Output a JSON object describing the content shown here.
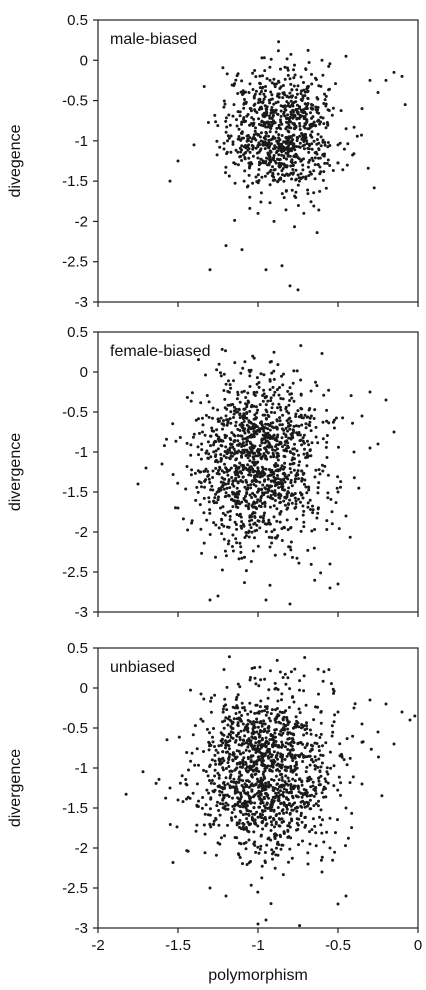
{
  "chart_data": [
    {
      "type": "scatter",
      "title": "male-biased",
      "xlabel": "",
      "ylabel": "divegence",
      "xlim": [
        -2,
        0
      ],
      "ylim": [
        -3,
        0.5
      ],
      "xticks": [
        "-2",
        "-1.5",
        "-1",
        "-0.5",
        "0"
      ],
      "yticks": [
        "0.5",
        "0",
        "-0.5",
        "-1",
        "-1.5",
        "-2",
        "-2.5",
        "-3"
      ],
      "cluster": {
        "center": [
          -0.85,
          -0.85
        ],
        "spread": [
          0.17,
          0.36
        ],
        "point_count": 900
      },
      "outliers": [
        [
          -1.55,
          -1.5
        ],
        [
          -1.5,
          -1.25
        ],
        [
          -1.4,
          -1.05
        ],
        [
          -1.3,
          -2.6
        ],
        [
          -1.2,
          -2.3
        ],
        [
          -1.15,
          -0.55
        ],
        [
          -1.1,
          -2.35
        ],
        [
          -0.95,
          -2.6
        ],
        [
          -0.85,
          -2.55
        ],
        [
          -0.8,
          -2.8
        ],
        [
          -0.75,
          -2.85
        ],
        [
          -0.3,
          -0.25
        ],
        [
          -0.25,
          -0.4
        ],
        [
          -0.2,
          -0.25
        ],
        [
          -0.15,
          -0.15
        ],
        [
          -0.1,
          -0.2
        ],
        [
          -0.08,
          -0.55
        ],
        [
          -0.35,
          -0.6
        ],
        [
          -0.45,
          0.05
        ],
        [
          -0.6,
          0.0
        ],
        [
          -0.5,
          -1.05
        ],
        [
          -0.9,
          -2.0
        ],
        [
          -1.0,
          -1.9
        ]
      ]
    },
    {
      "type": "scatter",
      "title": "female-biased",
      "xlabel": "",
      "ylabel": "divergence",
      "xlim": [
        -2,
        0
      ],
      "ylim": [
        -3,
        0.5
      ],
      "xticks": [
        "-2",
        "-1.5",
        "-1",
        "-0.5",
        "0"
      ],
      "yticks": [
        "0.5",
        "0",
        "-0.5",
        "-1",
        "-1.5",
        "-2",
        "-2.5",
        "-3"
      ],
      "cluster": {
        "center": [
          -1.0,
          -1.1
        ],
        "spread": [
          0.2,
          0.5
        ],
        "point_count": 1300
      },
      "outliers": [
        [
          -1.75,
          -1.4
        ],
        [
          -1.7,
          -1.2
        ],
        [
          -1.6,
          -1.15
        ],
        [
          -1.5,
          -1.7
        ],
        [
          -1.05,
          0.0
        ],
        [
          -0.35,
          -0.55
        ],
        [
          -0.3,
          -0.25
        ],
        [
          -0.2,
          -0.35
        ],
        [
          -0.15,
          -0.75
        ],
        [
          -0.25,
          -0.9
        ],
        [
          -0.3,
          -0.95
        ],
        [
          -0.55,
          -2.7
        ],
        [
          -0.5,
          -2.65
        ],
        [
          -0.8,
          -2.9
        ],
        [
          -0.95,
          -2.85
        ],
        [
          -1.25,
          -2.8
        ],
        [
          -1.3,
          -2.85
        ],
        [
          -0.45,
          -1.8
        ],
        [
          -0.5,
          -1.5
        ],
        [
          -0.4,
          -1.0
        ],
        [
          -0.55,
          -2.4
        ]
      ]
    },
    {
      "type": "scatter",
      "title": "unbiased",
      "xlabel": "polymorphism",
      "ylabel": "divergence",
      "xlim": [
        -2,
        0
      ],
      "ylim": [
        -3,
        0.5
      ],
      "xticks": [
        "-2",
        "-1.5",
        "-1",
        "-0.5",
        "0"
      ],
      "yticks": [
        "0.5",
        "0",
        "-0.5",
        "-1",
        "-1.5",
        "-2",
        "-2.5",
        "-3"
      ],
      "cluster": {
        "center": [
          -0.95,
          -1.05
        ],
        "spread": [
          0.22,
          0.48
        ],
        "point_count": 1400
      },
      "outliers": [
        [
          -1.55,
          -1.25
        ],
        [
          -1.5,
          -1.4
        ],
        [
          -1.45,
          -1.2
        ],
        [
          -1.05,
          0.1
        ],
        [
          -0.5,
          -0.3
        ],
        [
          -0.4,
          -0.25
        ],
        [
          -0.3,
          -0.15
        ],
        [
          -0.2,
          -0.2
        ],
        [
          -0.1,
          -0.3
        ],
        [
          -0.05,
          -0.4
        ],
        [
          -0.02,
          -0.35
        ],
        [
          -0.15,
          -0.7
        ],
        [
          -0.25,
          -0.55
        ],
        [
          -0.35,
          -0.45
        ],
        [
          -0.45,
          -2.6
        ],
        [
          -0.5,
          -2.7
        ],
        [
          -0.95,
          -2.9
        ],
        [
          -1.0,
          -2.95
        ],
        [
          -1.2,
          -2.6
        ],
        [
          -1.3,
          -2.5
        ],
        [
          -0.6,
          -2.3
        ],
        [
          -0.55,
          -2.0
        ],
        [
          -0.45,
          -1.5
        ],
        [
          -0.35,
          -1.2
        ]
      ]
    }
  ]
}
